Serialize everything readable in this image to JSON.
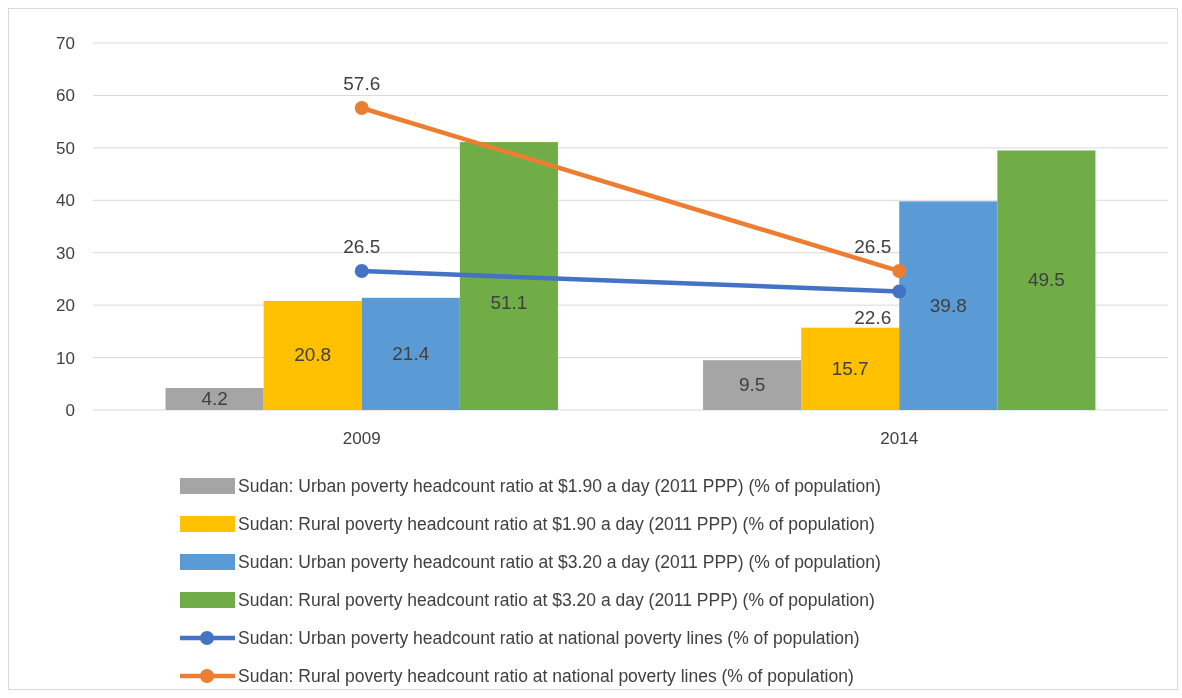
{
  "chart_data": {
    "type": "bar",
    "categories": [
      "2009",
      "2014"
    ],
    "series": [
      {
        "name": "Sudan: Urban poverty headcount ratio at $1.90 a day (2011 PPP) (% of population)",
        "color": "#a5a5a5",
        "values": [
          4.2,
          9.5
        ]
      },
      {
        "name": "Sudan: Rural poverty headcount ratio at $1.90 a day (2011 PPP) (% of population)",
        "color": "#ffc000",
        "values": [
          20.8,
          15.7
        ]
      },
      {
        "name": "Sudan: Urban poverty headcount ratio at $3.20 a day (2011 PPP) (% of population)",
        "color": "#5b9bd5",
        "values": [
          21.4,
          39.8
        ]
      },
      {
        "name": "Sudan: Rural poverty headcount ratio at $3.20 a day (2011 PPP) (% of population)",
        "color": "#70ad47",
        "values": [
          51.1,
          49.5
        ]
      },
      {
        "name": "Sudan: Urban poverty headcount ratio at national poverty lines (% of population)",
        "color": "#4472c4",
        "type": "line",
        "marker": "circle",
        "values": [
          26.5,
          22.6
        ]
      },
      {
        "name": "Sudan: Rural poverty headcount ratio at national poverty lines (% of population)",
        "color": "#ed7d31",
        "type": "line",
        "marker": "circle",
        "values": [
          57.6,
          26.5
        ]
      }
    ],
    "ylim": [
      0,
      70
    ],
    "yticks": [
      0,
      10,
      20,
      30,
      40,
      50,
      60,
      70
    ],
    "grid": "y",
    "data_labels": true,
    "legend": "bottom"
  }
}
